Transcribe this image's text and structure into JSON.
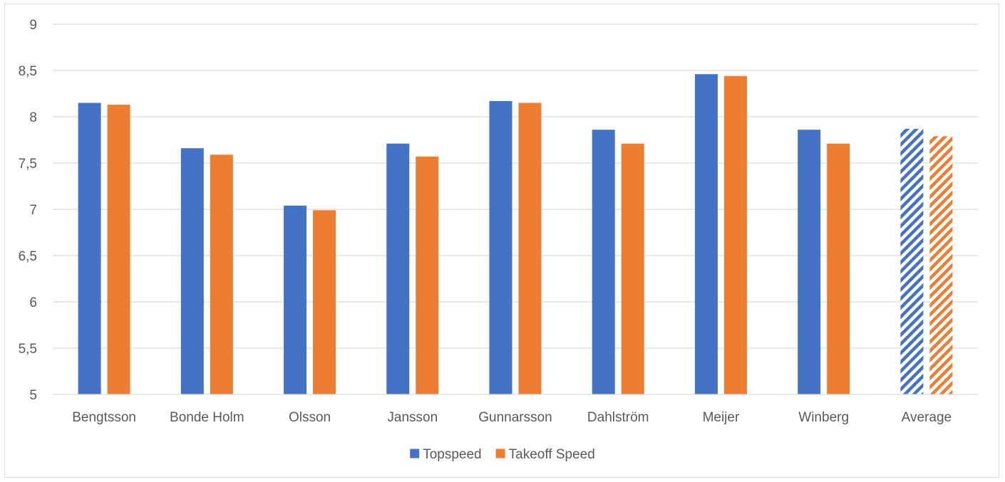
{
  "chart_data": {
    "type": "bar",
    "categories": [
      "Bengtsson",
      "Bonde Holm",
      "Olsson",
      "Jansson",
      "Gunnarsson",
      "Dahlström",
      "Meijer",
      "Winberg",
      "Average"
    ],
    "series": [
      {
        "name": "Topspeed",
        "color": "#4472C4",
        "values": [
          8.15,
          7.66,
          7.04,
          7.71,
          8.17,
          7.86,
          8.46,
          7.86,
          7.87
        ]
      },
      {
        "name": "Takeoff Speed",
        "color": "#ED7D31",
        "values": [
          8.13,
          7.59,
          6.99,
          7.57,
          8.15,
          7.71,
          8.44,
          7.71,
          7.79
        ]
      }
    ],
    "hatched_categories": [
      "Average"
    ],
    "ylim": [
      5,
      9
    ],
    "yticks": [
      5,
      5.5,
      6,
      6.5,
      7,
      7.5,
      8,
      8.5,
      9
    ],
    "ytick_labels": [
      "5",
      "5,5",
      "6",
      "6,5",
      "7",
      "7,5",
      "8",
      "8,5",
      "9"
    ],
    "grid": true,
    "legend": "bottom",
    "title": "",
    "xlabel": "",
    "ylabel": ""
  }
}
